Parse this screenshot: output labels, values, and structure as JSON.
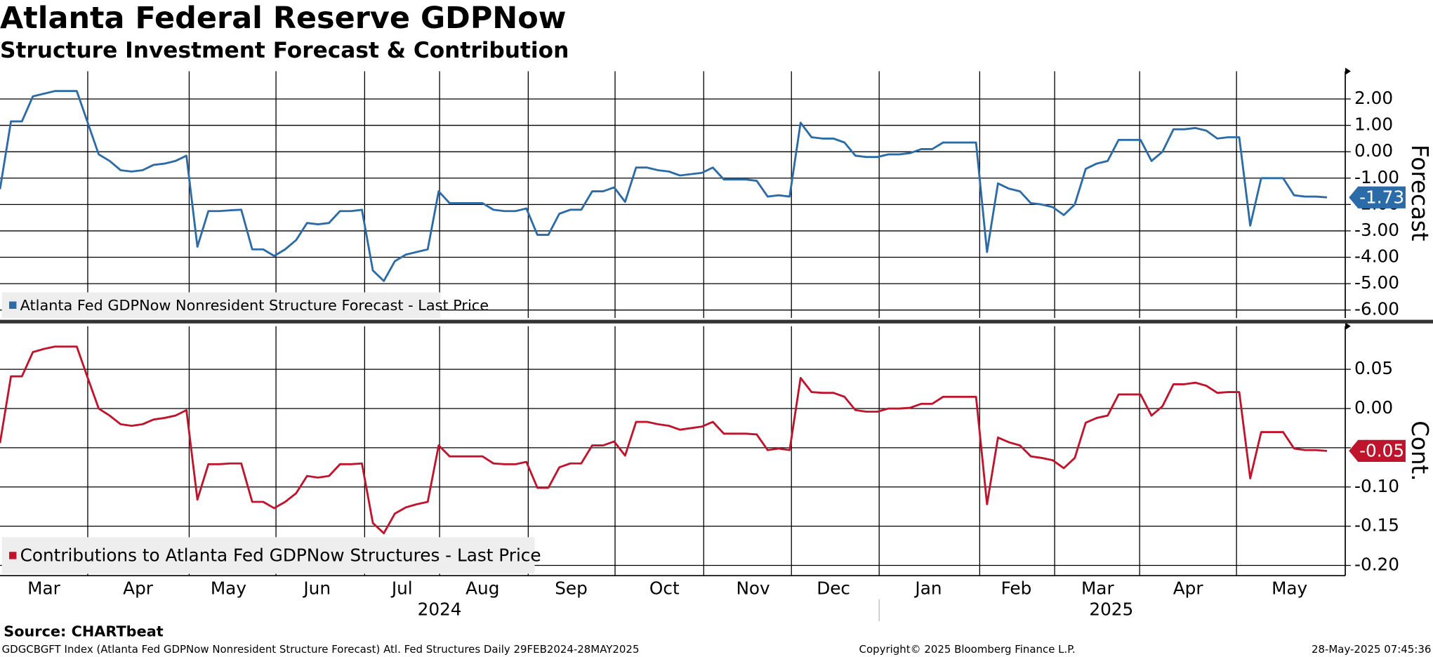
{
  "title": "Atlanta Federal Reserve GDPNow",
  "subtitle": "Structure Investment Forecast & Contribution",
  "chart_data": [
    {
      "type": "line",
      "y_label": "Forecast",
      "ylim": [
        -6.3,
        3.05
      ],
      "yticks": [
        {
          "value": 2,
          "label": "2.00"
        },
        {
          "value": 1,
          "label": "1.00"
        },
        {
          "value": 0,
          "label": "0.00"
        },
        {
          "value": -1,
          "label": "-1.00"
        },
        {
          "value": -2,
          "label": "-2.00"
        },
        {
          "value": -3,
          "label": "-3.00"
        },
        {
          "value": -4,
          "label": "-4.00"
        },
        {
          "value": -5,
          "label": "-5.00"
        },
        {
          "value": -6,
          "label": "-6.00"
        }
      ],
      "grid": true,
      "annotations": [
        {
          "value": -1.73,
          "label": "-1.73"
        }
      ],
      "series": [
        {
          "name": "Atlanta Fed GDPNow Nonresident Structure Forecast - Last Price",
          "color": "#2b6ca8",
          "values": [
            -1.42,
            1.15,
            1.15,
            2.1,
            2.2,
            2.3,
            2.3,
            2.3,
            1.1,
            -0.1,
            -0.35,
            -0.7,
            -0.75,
            -0.7,
            -0.5,
            -0.45,
            -0.35,
            -0.15,
            -3.6,
            -2.25,
            -2.25,
            -2.22,
            -2.2,
            -3.7,
            -3.7,
            -3.95,
            -3.7,
            -3.35,
            -2.7,
            -2.75,
            -2.7,
            -2.25,
            -2.25,
            -2.2,
            -4.5,
            -4.9,
            -4.15,
            -3.9,
            -3.8,
            -3.7,
            -1.5,
            -1.95,
            -1.95,
            -1.95,
            -1.95,
            -2.2,
            -2.25,
            -2.25,
            -2.15,
            -3.15,
            -3.15,
            -2.35,
            -2.2,
            -2.2,
            -1.5,
            -1.5,
            -1.35,
            -1.9,
            -0.6,
            -0.6,
            -0.7,
            -0.75,
            -0.9,
            -0.85,
            -0.8,
            -0.6,
            -1.05,
            -1.05,
            -1.05,
            -1.1,
            -1.7,
            -1.65,
            -1.7,
            1.1,
            0.55,
            0.5,
            0.5,
            0.35,
            -0.15,
            -0.2,
            -0.2,
            -0.1,
            -0.1,
            -0.05,
            0.1,
            0.1,
            0.35,
            0.35,
            0.35,
            0.35,
            -3.8,
            -1.2,
            -1.4,
            -1.5,
            -1.95,
            -2.0,
            -2.1,
            -2.4,
            -2.0,
            -0.65,
            -0.45,
            -0.35,
            0.45,
            0.45,
            0.45,
            -0.35,
            0.0,
            0.85,
            0.85,
            0.9,
            0.8,
            0.5,
            0.55,
            0.55,
            -2.8,
            -1.0,
            -1.0,
            -1.0,
            -1.65,
            -1.7,
            -1.7,
            -1.73
          ]
        }
      ]
    },
    {
      "type": "line",
      "y_label": "Cont.",
      "ylim": [
        -0.213,
        0.105
      ],
      "yticks": [
        0.05,
        {
          "value": 0,
          "label": "0.00"
        },
        -0.05,
        {
          "value": -0.1,
          "label": "-0.10"
        },
        -0.15,
        {
          "value": -0.2,
          "label": "-0.20"
        }
      ],
      "grid": true,
      "annotations": [
        {
          "value": -0.054,
          "label": "-0.05"
        }
      ],
      "series": [
        {
          "name": "Contributions to Atlanta Fed GDPNow Structures - Last Price",
          "color": "#c0142c",
          "values": [
            -0.044,
            0.041,
            0.041,
            0.072,
            0.076,
            0.079,
            0.079,
            0.079,
            0.039,
            0.0,
            -0.009,
            -0.02,
            -0.022,
            -0.02,
            -0.014,
            -0.012,
            -0.009,
            -0.002,
            -0.116,
            -0.071,
            -0.071,
            -0.07,
            -0.07,
            -0.119,
            -0.119,
            -0.127,
            -0.119,
            -0.108,
            -0.086,
            -0.088,
            -0.086,
            -0.071,
            -0.071,
            -0.07,
            -0.146,
            -0.159,
            -0.134,
            -0.126,
            -0.122,
            -0.119,
            -0.047,
            -0.061,
            -0.061,
            -0.061,
            -0.061,
            -0.07,
            -0.071,
            -0.071,
            -0.068,
            -0.101,
            -0.101,
            -0.075,
            -0.07,
            -0.07,
            -0.047,
            -0.047,
            -0.042,
            -0.06,
            -0.017,
            -0.017,
            -0.02,
            -0.022,
            -0.027,
            -0.025,
            -0.023,
            -0.017,
            -0.032,
            -0.032,
            -0.032,
            -0.033,
            -0.053,
            -0.051,
            -0.053,
            0.039,
            0.021,
            0.02,
            0.02,
            0.015,
            -0.002,
            -0.004,
            -0.004,
            0.0,
            0.0,
            0.001,
            0.006,
            0.006,
            0.015,
            0.015,
            0.015,
            0.015,
            -0.122,
            -0.037,
            -0.043,
            -0.047,
            -0.061,
            -0.063,
            -0.066,
            -0.076,
            -0.063,
            -0.018,
            -0.012,
            -0.009,
            0.018,
            0.018,
            0.018,
            -0.009,
            0.003,
            0.031,
            0.031,
            0.033,
            0.029,
            0.02,
            0.021,
            0.021,
            -0.089,
            -0.03,
            -0.03,
            -0.03,
            -0.051,
            -0.053,
            -0.053,
            -0.054
          ]
        }
      ]
    }
  ],
  "x_axis": {
    "months": [
      "Mar",
      "Apr",
      "May",
      "Jun",
      "Jul",
      "Aug",
      "Sep",
      "Oct",
      "Nov",
      "Dec",
      "Jan",
      "Feb",
      "Mar",
      "Apr",
      "May"
    ],
    "years": [
      "2024",
      "2025"
    ]
  },
  "footer": {
    "source": "Source: CHARTbeat",
    "description": "GDGCBGFT Index (Atlanta Fed GDPNow Nonresident Structure Forecast) Atl. Fed Structures  Daily 29FEB2024-28MAY2025",
    "copyright": "Copyright© 2025 Bloomberg Finance L.P.",
    "timestamp": "28-May-2025 07:45:36"
  }
}
